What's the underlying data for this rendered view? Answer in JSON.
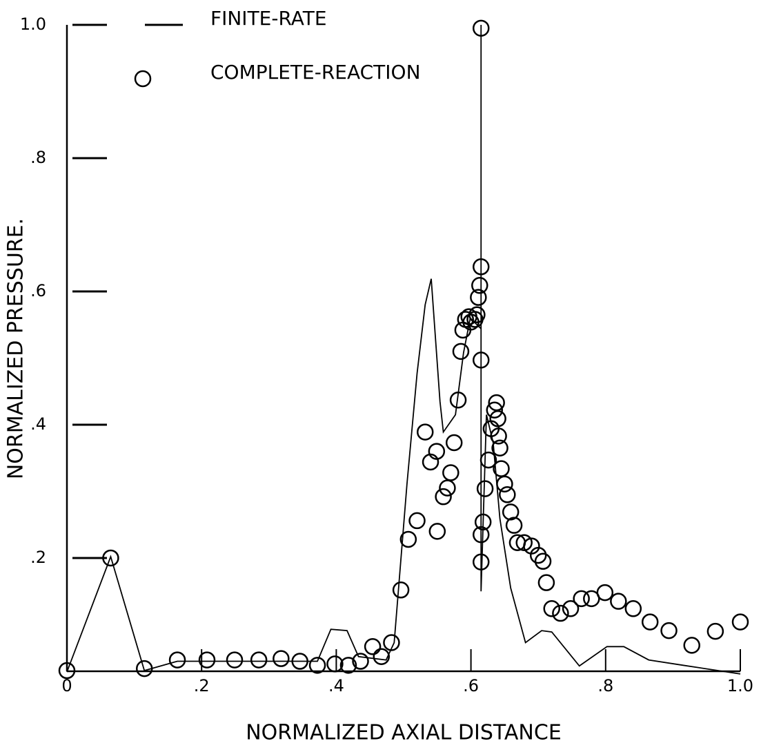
{
  "chart_data": {
    "type": "line",
    "x_label": "NORMALIZED AXIAL DISTANCE",
    "y_label": "NORMALIZED PRESSURE.",
    "xlim": [
      0,
      1.0
    ],
    "ylim": [
      0.03,
      1.0
    ],
    "xticks": [
      0,
      {
        "value": 0.2,
        "label": ".2"
      },
      {
        "value": 0.4,
        "label": ".4"
      },
      {
        "value": 0.6,
        "label": ".6"
      },
      {
        "value": 0.8,
        "label": ".8"
      },
      {
        "value": 1.0,
        "label": "1.0"
      }
    ],
    "yticks": [
      {
        "value": 0.2,
        "label": ".2"
      },
      {
        "value": 0.4,
        "label": ".4"
      },
      {
        "value": 0.6,
        "label": ".6"
      },
      {
        "value": 0.8,
        "label": ".8"
      },
      {
        "value": 1.0,
        "label": "1.0"
      }
    ],
    "series": [
      {
        "name": "FINITE-RATE",
        "type": "line",
        "color": "#000000",
        "x": [
          0,
          0.065,
          0.115,
          0.164,
          0.372,
          0.392,
          0.416,
          0.433,
          0.474,
          0.486,
          0.505,
          0.52,
          0.532,
          0.541,
          0.554,
          0.559,
          0.577,
          0.589,
          0.599,
          0.615,
          0.615,
          0.615,
          0.623,
          0.633,
          0.643,
          0.659,
          0.681,
          0.705,
          0.72,
          0.761,
          0.802,
          0.827,
          0.864,
          0.915,
          1.0
        ],
        "values": [
          0.029,
          0.202,
          0.031,
          0.045,
          0.045,
          0.093,
          0.091,
          0.052,
          0.047,
          0.073,
          0.311,
          0.477,
          0.58,
          0.619,
          0.435,
          0.389,
          0.415,
          0.508,
          0.56,
          0.544,
          1.0,
          0.15,
          0.415,
          0.373,
          0.259,
          0.155,
          0.073,
          0.091,
          0.089,
          0.038,
          0.067,
          0.067,
          0.047,
          0.039,
          0.026
        ]
      },
      {
        "name": "COMPLETE-REACTION",
        "type": "scatter",
        "color": "#000000",
        "x": [
          0,
          0.065,
          0.115,
          0.164,
          0.208,
          0.249,
          0.285,
          0.318,
          0.346,
          0.372,
          0.398,
          0.418,
          0.436,
          0.454,
          0.467,
          0.482,
          0.496,
          0.507,
          0.52,
          0.532,
          0.54,
          0.549,
          0.55,
          0.559,
          0.565,
          0.57,
          0.575,
          0.581,
          0.585,
          0.588,
          0.592,
          0.597,
          0.6,
          0.606,
          0.609,
          0.611,
          0.613,
          0.615,
          0.615,
          0.615,
          0.615,
          0.615,
          0.618,
          0.621,
          0.626,
          0.63,
          0.635,
          0.638,
          0.64,
          0.641,
          0.643,
          0.645,
          0.65,
          0.654,
          0.659,
          0.664,
          0.669,
          0.679,
          0.69,
          0.7,
          0.707,
          0.712,
          0.72,
          0.733,
          0.748,
          0.764,
          0.779,
          0.799,
          0.819,
          0.841,
          0.866,
          0.894,
          0.928,
          0.963,
          1.0
        ],
        "values": [
          0.031,
          0.2,
          0.034,
          0.047,
          0.047,
          0.047,
          0.047,
          0.049,
          0.045,
          0.039,
          0.041,
          0.039,
          0.045,
          0.067,
          0.052,
          0.073,
          0.152,
          0.228,
          0.256,
          0.389,
          0.344,
          0.36,
          0.24,
          0.292,
          0.305,
          0.328,
          0.373,
          0.437,
          0.51,
          0.542,
          0.558,
          0.562,
          0.554,
          0.558,
          0.565,
          0.591,
          0.609,
          0.637,
          0.995,
          0.497,
          0.235,
          0.194,
          0.254,
          0.304,
          0.347,
          0.394,
          0.422,
          0.433,
          0.409,
          0.383,
          0.365,
          0.334,
          0.311,
          0.295,
          0.269,
          0.249,
          0.223,
          0.223,
          0.218,
          0.204,
          0.195,
          0.163,
          0.124,
          0.117,
          0.124,
          0.139,
          0.139,
          0.148,
          0.135,
          0.124,
          0.104,
          0.091,
          0.069,
          0.09,
          0.104
        ]
      }
    ]
  }
}
